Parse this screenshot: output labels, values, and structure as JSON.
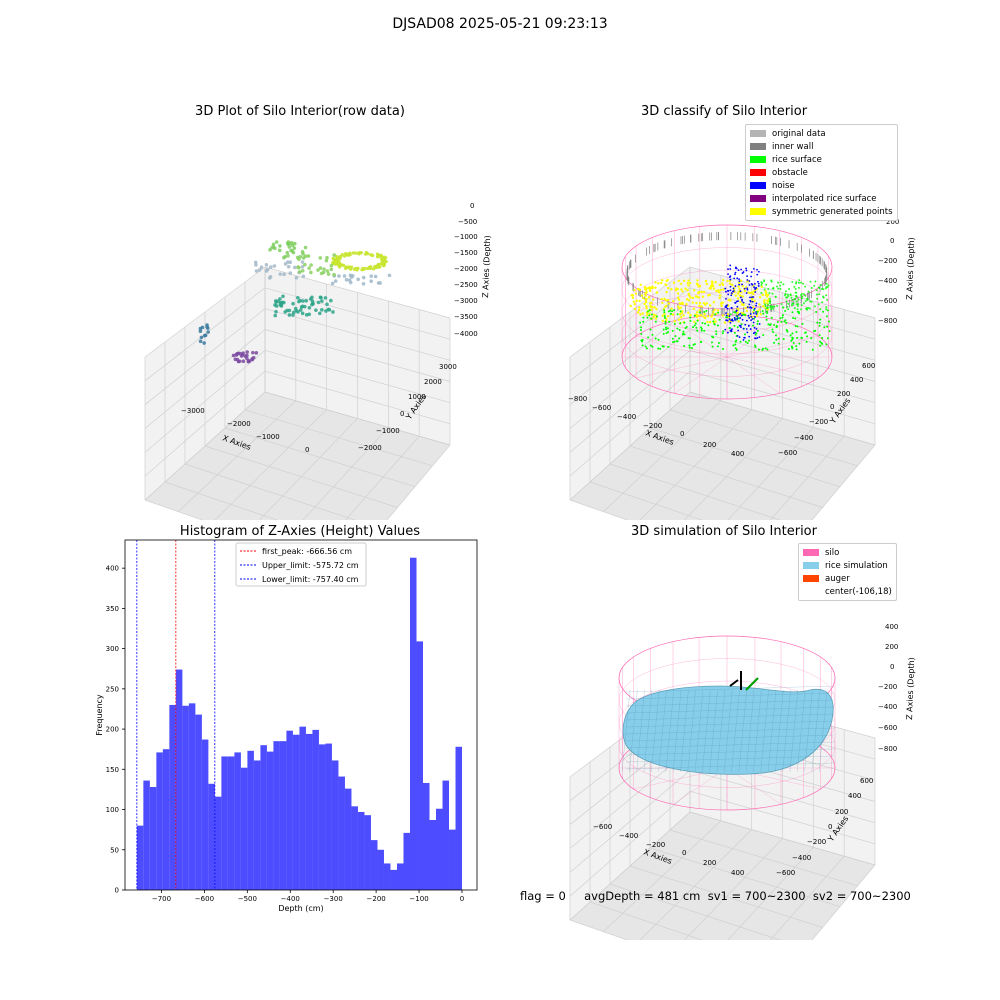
{
  "figure": {
    "suptitle": "DJSAD08 2025-05-21 09:23:13",
    "status_line": "flag = 0     avgDepth = 481 cm  sv1 = 700~2300  sv2 = 700~2300"
  },
  "colors": {
    "hist_bar": "#4d4dff",
    "first_peak": "#ff0000",
    "limits": "#0000ff",
    "silo_mesh": "#ff69b4",
    "rice_sim": "#87ceeb"
  },
  "chart_data": [
    {
      "type": "scatter",
      "subtype": "3d",
      "title": "3D Plot of Silo Interior(row data)",
      "xlabel": "X Axies",
      "ylabel": "Y Axies",
      "zlabel": "Z Axies (Depth)",
      "x_ticks": [
        "−3000",
        "−2000",
        "−1000",
        "0"
      ],
      "y_ticks": [
        "−2000",
        "−1000",
        "0",
        "1000",
        "2000",
        "3000"
      ],
      "z_ticks": [
        "−4000",
        "−3500",
        "−3000",
        "−2500",
        "−2000",
        "−1500",
        "−1000",
        "−500",
        "0"
      ],
      "grid": true
    },
    {
      "type": "scatter",
      "subtype": "3d",
      "title": "3D classify of Silo Interior",
      "xlabel": "X Axies",
      "ylabel": "Y Axies",
      "zlabel": "Z Axies (Depth)",
      "x_ticks": [
        "−800",
        "−600",
        "−400",
        "−200",
        "0",
        "200",
        "400"
      ],
      "y_ticks": [
        "−600",
        "−400",
        "−200",
        "0",
        "200",
        "400",
        "600"
      ],
      "z_ticks": [
        "−800",
        "−600",
        "−400",
        "−200",
        "0",
        "200"
      ],
      "legend_position": "top-right",
      "legend": [
        {
          "label": "original data",
          "color": "#b4b4b4"
        },
        {
          "label": "inner wall",
          "color": "#808080"
        },
        {
          "label": "rice surface",
          "color": "#00ff00"
        },
        {
          "label": "obstacle",
          "color": "#ff0000"
        },
        {
          "label": "noise",
          "color": "#0000ff"
        },
        {
          "label": "interpolated rice surface",
          "color": "#800080"
        },
        {
          "label": "symmetric generated points",
          "color": "#ffff00"
        }
      ],
      "grid": true
    },
    {
      "type": "bar",
      "subtype": "histogram",
      "title": "Histogram of Z-Axies (Height) Values",
      "xlabel": "Depth (cm)",
      "ylabel": "Frequency",
      "xlim": [
        -785,
        35
      ],
      "ylim": [
        0,
        435
      ],
      "x_ticks": [
        -700,
        -600,
        -500,
        -400,
        -300,
        -200,
        -100,
        0
      ],
      "y_ticks": [
        0,
        50,
        100,
        150,
        200,
        250,
        300,
        350,
        400
      ],
      "bin_start": -757.4,
      "bin_width": 15.15,
      "values": [
        80,
        136,
        128,
        171,
        175,
        230,
        274,
        229,
        232,
        218,
        187,
        132,
        116,
        166,
        166,
        171,
        152,
        173,
        161,
        180,
        172,
        185,
        185,
        198,
        193,
        203,
        194,
        199,
        181,
        182,
        161,
        141,
        126,
        104,
        97,
        93,
        62,
        50,
        33,
        25,
        33,
        71,
        413,
        309,
        133,
        87,
        101,
        136,
        75,
        178
      ],
      "reference_lines": [
        {
          "label": "first_peak: -666.56 cm",
          "x": -666.56,
          "color": "#ff0000"
        },
        {
          "label": "Upper_limit: -575.72 cm",
          "x": -575.72,
          "color": "#0000ff"
        },
        {
          "label": "Lower_limit: -757.40 cm",
          "x": -757.4,
          "color": "#0000ff"
        }
      ],
      "legend_position": "top-center",
      "grid": false
    },
    {
      "type": "scatter",
      "subtype": "3d-surface",
      "title": "3D simulation of Silo Interior",
      "xlabel": "X Axies",
      "ylabel": "Y Axies",
      "zlabel": "Z Axies (Depth)",
      "x_ticks": [
        "−600",
        "−400",
        "−200",
        "0",
        "200",
        "400"
      ],
      "y_ticks": [
        "−600",
        "−400",
        "−200",
        "0",
        "200",
        "400",
        "600"
      ],
      "z_ticks": [
        "−800",
        "−600",
        "−400",
        "−200",
        "0",
        "200",
        "400"
      ],
      "legend_position": "top-right",
      "legend": [
        {
          "label": "silo",
          "color": "#ff69b4"
        },
        {
          "label": "rice simulation",
          "color": "#87ceeb"
        },
        {
          "label": "auger",
          "color": "#ff4500"
        },
        {
          "label": "center(-106,18)",
          "color": ""
        }
      ],
      "grid": true
    }
  ]
}
